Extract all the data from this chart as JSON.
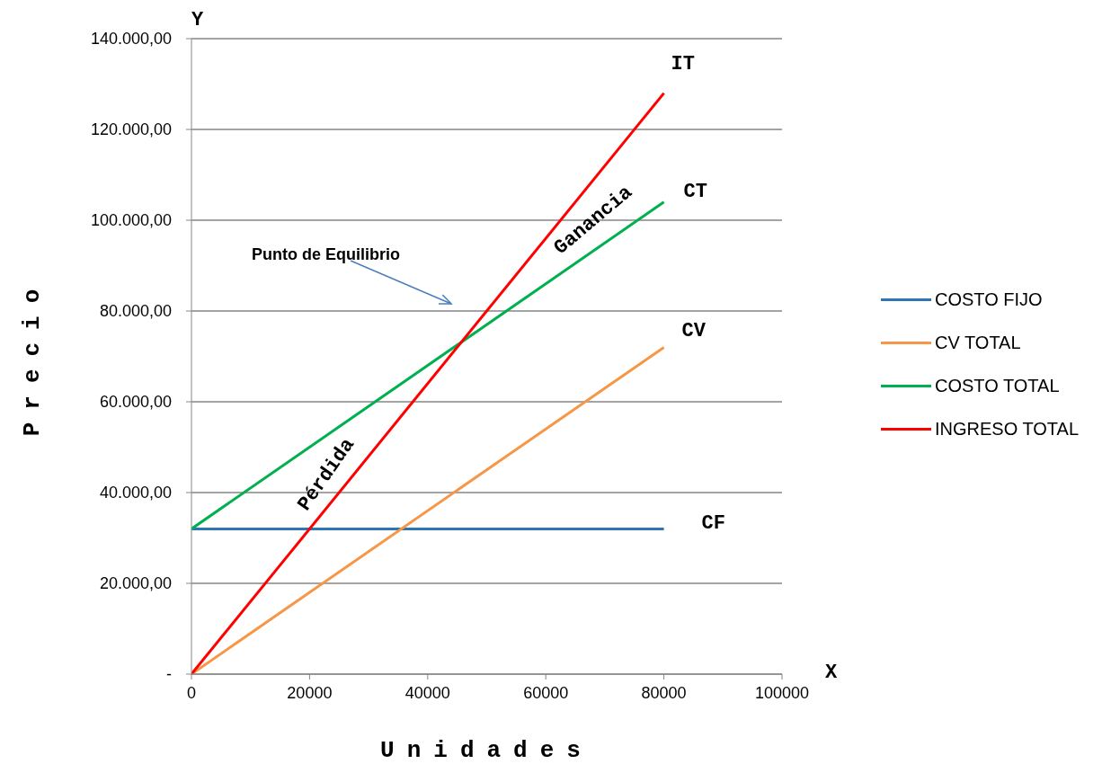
{
  "chart_data": {
    "type": "line",
    "xlabel": "Unidades",
    "ylabel": "Precio",
    "x": [
      0,
      80000
    ],
    "series": [
      {
        "name": "COSTO FIJO",
        "color": "#2e75b6",
        "values": [
          32000,
          32000
        ]
      },
      {
        "name": "CV TOTAL",
        "color": "#f79646",
        "values": [
          0,
          72000
        ]
      },
      {
        "name": "COSTO TOTAL",
        "color": "#00b050",
        "values": [
          32000,
          104000
        ]
      },
      {
        "name": "INGRESO TOTAL",
        "color": "#ff0000",
        "values": [
          0,
          128000
        ]
      }
    ],
    "xlim": [
      0,
      100000
    ],
    "xticks": [
      0,
      20000,
      40000,
      60000,
      80000,
      100000
    ],
    "ylim": [
      0,
      140000
    ],
    "yticks": [
      {
        "value": 0,
        "label": "-"
      },
      {
        "value": 20000,
        "label": "20.000,00"
      },
      {
        "value": 40000,
        "label": "40.000,00"
      },
      {
        "value": 60000,
        "label": "60.000,00"
      },
      {
        "value": 80000,
        "label": "80.000,00"
      },
      {
        "value": 100000,
        "label": "100.000,00"
      },
      {
        "value": 120000,
        "label": "120.000,00"
      },
      {
        "value": 140000,
        "label": "140.000,00"
      }
    ],
    "grid": "y",
    "legend": "right",
    "marker": "none",
    "line_style": "solid",
    "annotations": [
      "IT",
      "CT",
      "CV",
      "CF",
      "Ganancia",
      "Pérdida",
      "Punto de Equilibrio",
      "Y",
      "X"
    ]
  }
}
